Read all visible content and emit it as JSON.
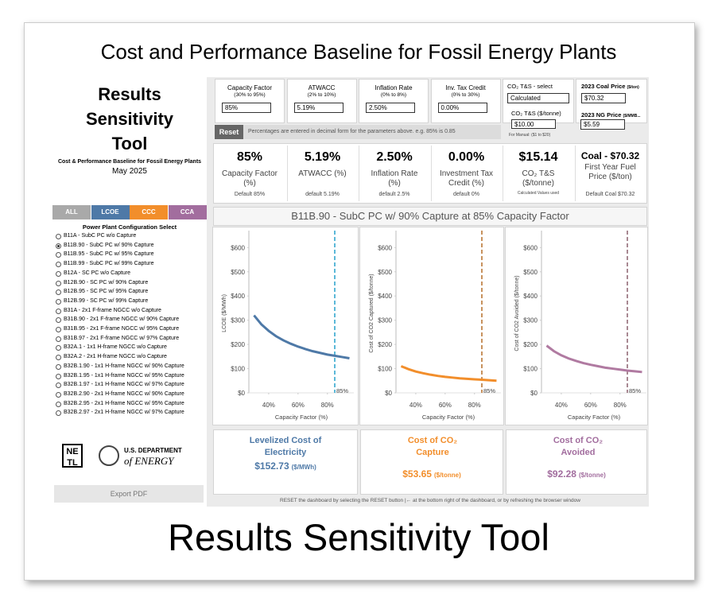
{
  "header": {
    "title": "Cost and Performance Baseline for Fossil Energy Plants"
  },
  "footer": {
    "title": "Results Sensitivity Tool"
  },
  "sidebar": {
    "title": "Results Sensitivity Tool",
    "subtitle": "Cost & Performance Baseline for Fossil Energy Plants",
    "date": "May 2025",
    "tabs": [
      "ALL",
      "LCOE",
      "CCC",
      "CCA"
    ],
    "list_title": "Power Plant Configuration Select",
    "plants": [
      "B11A - SubC PC w/o Capture",
      "B11B.90 - SubC PC w/ 90% Capture",
      "B11B.95 - SubC PC w/ 95% Capture",
      "B11B.99 - SubC PC w/ 99% Capture",
      "B12A - SC PC w/o Capture",
      "B12B.90 - SC PC w/ 90% Capture",
      "B12B.95 - SC PC w/ 95% Capture",
      "B12B.99 - SC PC w/ 99% Capture",
      "B31A - 2x1 F-frame NGCC w/o Capture",
      "B31B.90 - 2x1 F-frame NGCC w/ 90% Capture",
      "B31B.95 - 2x1 F-frame NGCC w/ 95% Capture",
      "B31B.97 - 2x1 F-frame NGCC w/ 97% Capture",
      "B32A.1 - 1x1 H-frame NGCC w/o Capture",
      "B32A.2 - 2x1 H-frame NGCC w/o Capture",
      "B32B.1.90 - 1x1 H-frame NGCC w/ 90% Capture",
      "B32B.1.95 - 1x1 H-frame NGCC w/ 95% Capture",
      "B32B.1.97 - 1x1 H-frame NGCC w/ 97% Capture",
      "B32B.2.90 - 2x1 H-frame NGCC w/ 90% Capture",
      "B32B.2.95 - 2x1 H-frame NGCC w/ 95% Capture",
      "B32B.2.97 - 2x1 H-frame NGCC w/ 97% Capture"
    ],
    "selected_plant": 1,
    "logo_netl": "NETL",
    "logo_doe_1": "U.S. DEPARTMENT",
    "logo_doe_2": "of ENERGY",
    "export": "Export PDF"
  },
  "inputs": [
    {
      "label": "Capacity Factor",
      "range": "(30% to 95%)",
      "value": "85%"
    },
    {
      "label": "ATWACC",
      "range": "(2% to 10%)",
      "value": "5.19%"
    },
    {
      "label": "Inflation Rate",
      "range": "(0% to 8%)",
      "value": "2.50%"
    },
    {
      "label": "Inv. Tax Credit",
      "range": "(0% to 30%)",
      "value": "0.00%"
    }
  ],
  "co2_input": {
    "label": "CO₂ T&S - select",
    "select": "Calculated",
    "label2": "CO₂ T&S ($/tonne)",
    "value": "$10.00",
    "note": "For Manual: ($1 to $20)"
  },
  "fuel_input": {
    "coal_label": "2023 Coal Price",
    "coal_unit": "($/ton)",
    "coal_value": "$70.32",
    "ng_label": "2023 NG Price",
    "ng_unit": "($/MMB...",
    "ng_value": "$5.59"
  },
  "reset": {
    "button": "Reset",
    "note": "Percentages are entered in decimal form for the parameters above. e.g. 85% is 0.85"
  },
  "kpis": [
    {
      "value": "85%",
      "label": "Capacity Factor (%)",
      "note": "Default 85%"
    },
    {
      "value": "5.19%",
      "label": "ATWACC (%)",
      "note": "default 5.19%"
    },
    {
      "value": "2.50%",
      "label": "Inflation Rate (%)",
      "note": "default 2.5%"
    },
    {
      "value": "0.00%",
      "label": "Investment Tax Credit (%)",
      "note": "default 0%"
    },
    {
      "value": "$15.14",
      "label": "CO₂ T&S ($/tonne)",
      "note": "Calculated Values used"
    },
    {
      "value": "Coal - $70.32",
      "label": "First Year Fuel Price ($/ton)",
      "note": "Default Coal $70.32"
    }
  ],
  "chart_title": "B11B.90 - SubC PC w/ 90% Capture at 85% Capacity Factor",
  "charts": [
    {
      "type": "line",
      "y_label": "LCOE ($/MWh)",
      "x_label": "Capacity Factor (%)",
      "color": "#4e79a7",
      "marker_color": "#5bb8d8",
      "x": [
        30,
        35,
        40,
        45,
        50,
        55,
        60,
        65,
        70,
        75,
        80,
        85,
        90,
        95
      ],
      "values": [
        320,
        283,
        256,
        234,
        217,
        203,
        191,
        181,
        172,
        165,
        158,
        153,
        148,
        143
      ],
      "xlim": [
        26.5,
        98
      ],
      "ylim": [
        0,
        670
      ],
      "xticks": [
        {
          "value": 40,
          "label": "40%"
        },
        {
          "value": 60,
          "label": "60%"
        },
        {
          "value": 80,
          "label": "80%"
        }
      ],
      "yticks": [
        {
          "value": 0,
          "label": "$0"
        },
        {
          "value": 100,
          "label": "$100"
        },
        {
          "value": 200,
          "label": "$200"
        },
        {
          "value": 300,
          "label": "$300"
        },
        {
          "value": 400,
          "label": "$400"
        },
        {
          "value": 500,
          "label": "$500"
        },
        {
          "value": 600,
          "label": "$600"
        }
      ],
      "marker": {
        "value": 85,
        "label": "85%"
      }
    },
    {
      "type": "line",
      "y_label": "Cost of CO2 Captured ($/tonne)",
      "x_label": "Capacity Factor (%)",
      "color": "#f28e2b",
      "marker_color": "#c8925e",
      "x": [
        30,
        35,
        40,
        45,
        50,
        55,
        60,
        65,
        70,
        75,
        80,
        85,
        90,
        95
      ],
      "values": [
        110,
        98,
        88,
        81,
        75,
        70,
        66,
        63,
        60,
        58,
        56,
        54,
        52,
        50
      ],
      "xlim": [
        26.5,
        98
      ],
      "ylim": [
        0,
        670
      ],
      "xticks": [
        {
          "value": 40,
          "label": "40%"
        },
        {
          "value": 60,
          "label": "60%"
        },
        {
          "value": 80,
          "label": "80%"
        }
      ],
      "yticks": [
        {
          "value": 0,
          "label": "$0"
        },
        {
          "value": 100,
          "label": "$100"
        },
        {
          "value": 200,
          "label": "$200"
        },
        {
          "value": 300,
          "label": "$300"
        },
        {
          "value": 400,
          "label": "$400"
        },
        {
          "value": 500,
          "label": "$500"
        },
        {
          "value": 600,
          "label": "$600"
        }
      ],
      "marker": {
        "value": 85,
        "label": "85%"
      }
    },
    {
      "type": "line",
      "y_label": "Cost of CO2 Avoided ($/tonne)",
      "x_label": "Capacity Factor (%)",
      "color": "#b07aa1",
      "marker_color": "#a88892",
      "x": [
        30,
        35,
        40,
        45,
        50,
        55,
        60,
        65,
        70,
        75,
        80,
        85,
        90,
        95
      ],
      "values": [
        195,
        172,
        155,
        142,
        132,
        123,
        116,
        110,
        104,
        100,
        96,
        92,
        89,
        86
      ],
      "xlim": [
        26.5,
        98
      ],
      "ylim": [
        0,
        670
      ],
      "xticks": [
        {
          "value": 40,
          "label": "40%"
        },
        {
          "value": 60,
          "label": "60%"
        },
        {
          "value": 80,
          "label": "80%"
        }
      ],
      "yticks": [
        {
          "value": 0,
          "label": "$0"
        },
        {
          "value": 100,
          "label": "$100"
        },
        {
          "value": 200,
          "label": "$200"
        },
        {
          "value": 300,
          "label": "$300"
        },
        {
          "value": 400,
          "label": "$400"
        },
        {
          "value": 500,
          "label": "$500"
        },
        {
          "value": 600,
          "label": "$600"
        }
      ],
      "marker": {
        "value": 85,
        "label": "85%"
      }
    }
  ],
  "results": [
    {
      "title": "Levelized Cost of Electricity",
      "value": "$152.73",
      "unit": "($/MWh)",
      "color": "#4e79a7"
    },
    {
      "title": "Cost of CO₂ Capture",
      "value": "$53.65",
      "unit": "($/tonne)",
      "color": "#f28e2b"
    },
    {
      "title": "Cost of CO₂ Avoided",
      "value": "$92.28",
      "unit": "($/tonne)",
      "color": "#a26d9e"
    }
  ],
  "footer_note": "RESET the dashboard by selecting the RESET button |← at the bottom right of the dashboard, or by refreshing the browser window"
}
